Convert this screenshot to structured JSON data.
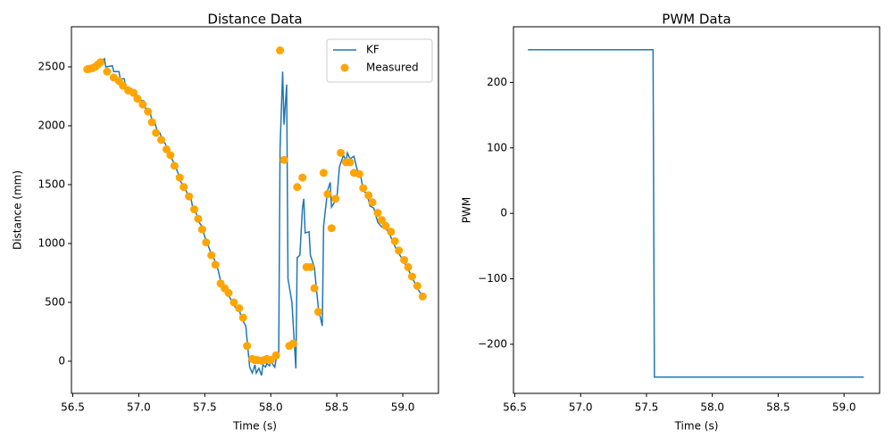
{
  "chart_data": [
    {
      "type": "line",
      "title": "Distance Data",
      "xlabel": "Time (s)",
      "ylabel": "Distance (mm)",
      "xlim": [
        56.49,
        59.27
      ],
      "ylim": [
        -273,
        2841
      ],
      "xticks": [
        56.5,
        {
          "value": 57,
          "label": "57.0"
        },
        57.5,
        {
          "value": 58,
          "label": "58.0"
        },
        58.5,
        {
          "value": 59,
          "label": "59.0"
        }
      ],
      "yticks": [
        0,
        500,
        1000,
        1500,
        2000,
        2500
      ],
      "grid": false,
      "legend": "upper right",
      "series": [
        {
          "name": "KF",
          "type": "line",
          "color": "#1f77b4",
          "x": [
            56.6,
            56.65,
            56.7,
            56.74,
            56.75,
            56.8,
            56.81,
            56.85,
            56.86,
            56.89,
            56.9,
            56.95,
            56.96,
            56.99,
            57.0,
            57.04,
            57.05,
            57.08,
            57.1,
            57.12,
            57.14,
            57.16,
            57.18,
            57.2,
            57.22,
            57.24,
            57.26,
            57.28,
            57.3,
            57.32,
            57.34,
            57.37,
            57.39,
            57.41,
            57.43,
            57.45,
            57.47,
            57.5,
            57.52,
            57.54,
            57.57,
            57.6,
            57.62,
            57.65,
            57.68,
            57.7,
            57.73,
            57.76,
            57.78,
            57.81,
            57.84,
            57.86,
            57.88,
            57.89,
            57.91,
            57.93,
            57.94,
            57.96,
            57.97,
            57.99,
            58.0,
            58.03,
            58.04,
            58.06,
            58.07,
            58.09,
            58.1,
            58.12,
            58.13,
            58.16,
            58.19,
            58.2,
            58.22,
            58.24,
            58.25,
            58.26,
            58.29,
            58.3,
            58.33,
            58.36,
            58.39,
            58.4,
            58.43,
            58.45,
            58.46,
            58.5,
            58.52,
            58.55,
            58.57,
            58.58,
            58.6,
            58.63,
            58.66,
            58.68,
            58.7,
            58.73,
            58.75,
            58.78,
            58.81,
            58.84,
            58.87,
            58.9,
            58.93,
            58.96,
            58.99,
            59.02,
            59.05,
            59.08,
            59.11,
            59.15
          ],
          "values": [
            2490,
            2500,
            2530,
            2570,
            2500,
            2510,
            2460,
            2460,
            2400,
            2400,
            2330,
            2310,
            2270,
            2260,
            2220,
            2210,
            2150,
            2140,
            2050,
            2040,
            1950,
            1940,
            1870,
            1850,
            1790,
            1740,
            1700,
            1650,
            1590,
            1520,
            1490,
            1420,
            1410,
            1300,
            1280,
            1190,
            1160,
            1060,
            1000,
            940,
            870,
            780,
            680,
            600,
            560,
            520,
            460,
            440,
            360,
            300,
            -50,
            -100,
            -30,
            -100,
            -60,
            -120,
            -30,
            -50,
            -20,
            -40,
            0,
            -50,
            20,
            30,
            1800,
            2460,
            2010,
            2350,
            700,
            500,
            -60,
            880,
            900,
            1300,
            1380,
            1090,
            1100,
            900,
            800,
            450,
            300,
            1150,
            1450,
            1520,
            1310,
            1380,
            1650,
            1750,
            1700,
            1770,
            1720,
            1740,
            1600,
            1580,
            1450,
            1420,
            1320,
            1300,
            1180,
            1140,
            1130,
            1080,
            1000,
            930,
            880,
            820,
            760,
            690,
            620,
            550
          ]
        },
        {
          "name": "Measured",
          "type": "scatter",
          "color": "#ffa500",
          "x": [
            56.61,
            56.63,
            56.65,
            56.67,
            56.69,
            56.71,
            56.76,
            56.81,
            56.85,
            56.88,
            56.92,
            56.96,
            56.99,
            57.03,
            57.07,
            57.1,
            57.13,
            57.17,
            57.21,
            57.24,
            57.27,
            57.31,
            57.34,
            57.38,
            57.42,
            57.45,
            57.48,
            57.51,
            57.55,
            57.58,
            57.62,
            57.65,
            57.68,
            57.72,
            57.76,
            57.79,
            57.82,
            57.86,
            57.88,
            57.9,
            57.93,
            57.95,
            57.97,
            58.0,
            58.04,
            58.07,
            58.1,
            58.14,
            58.17,
            58.2,
            58.24,
            58.27,
            58.3,
            58.33,
            58.36,
            58.4,
            58.43,
            58.46,
            58.49,
            58.53,
            58.57,
            58.6,
            58.63,
            58.67,
            58.7,
            58.74,
            58.77,
            58.81,
            58.84,
            58.87,
            58.91,
            58.94,
            58.97,
            59.01,
            59.04,
            59.07,
            59.11,
            59.15
          ],
          "values": [
            2480,
            2485,
            2490,
            2500,
            2520,
            2540,
            2460,
            2410,
            2380,
            2340,
            2300,
            2280,
            2230,
            2180,
            2120,
            2030,
            1940,
            1880,
            1800,
            1750,
            1660,
            1560,
            1480,
            1400,
            1290,
            1210,
            1120,
            1010,
            900,
            820,
            660,
            620,
            580,
            500,
            450,
            370,
            130,
            20,
            10,
            10,
            5,
            10,
            20,
            10,
            50,
            2640,
            1710,
            130,
            150,
            1480,
            1560,
            800,
            800,
            620,
            420,
            1600,
            1420,
            1130,
            1380,
            1770,
            1690,
            1690,
            1600,
            1590,
            1470,
            1410,
            1350,
            1260,
            1200,
            1150,
            1100,
            1020,
            940,
            860,
            800,
            720,
            640,
            550
          ]
        }
      ]
    },
    {
      "type": "line",
      "title": "PWM Data",
      "xlabel": "Time (s)",
      "ylabel": "PWM",
      "xlim": [
        56.49,
        59.27
      ],
      "ylim": [
        -275,
        285
      ],
      "xticks": [
        56.5,
        {
          "value": 57,
          "label": "57.0"
        },
        57.5,
        {
          "value": 58,
          "label": "58.0"
        },
        58.5,
        {
          "value": 59,
          "label": "59.0"
        }
      ],
      "yticks": [
        {
          "value": -200,
          "label": "−200"
        },
        {
          "value": -100,
          "label": "−100"
        },
        0,
        100,
        200
      ],
      "grid": false,
      "series": [
        {
          "name": "PWM",
          "type": "line",
          "color": "#1f77b4",
          "x": [
            56.6,
            57.55,
            57.56,
            59.15
          ],
          "values": [
            250,
            250,
            -250,
            -250
          ]
        }
      ]
    }
  ]
}
